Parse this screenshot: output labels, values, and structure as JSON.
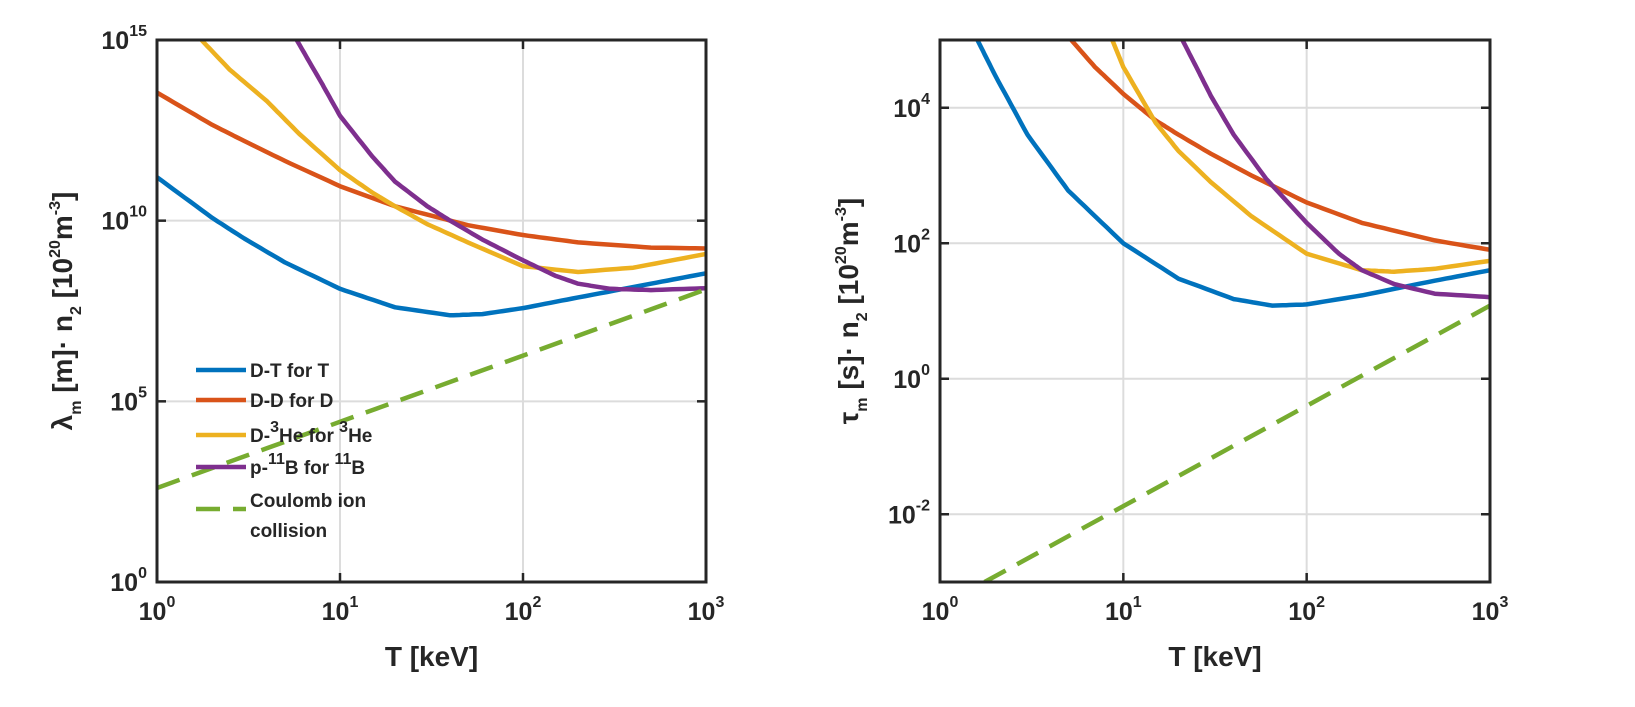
{
  "chart_data": [
    {
      "type": "line",
      "panel": "left",
      "xlabel": "T [keV]",
      "ylabel_parts": [
        "λ",
        "m",
        " [m]· n",
        "2",
        " [10",
        "20",
        "m",
        "-3",
        "]"
      ],
      "xscale": "log",
      "yscale": "log",
      "xlim": [
        1,
        1000
      ],
      "ylim": [
        1,
        1000000000000000.0
      ],
      "xticks": [
        {
          "base": "10",
          "exp": "0",
          "value": 1
        },
        {
          "base": "10",
          "exp": "1",
          "value": 10
        },
        {
          "base": "10",
          "exp": "2",
          "value": 100
        },
        {
          "base": "10",
          "exp": "3",
          "value": 1000
        }
      ],
      "yticks": [
        {
          "base": "10",
          "exp": "0",
          "value": 1
        },
        {
          "base": "10",
          "exp": "5",
          "value": 100000.0
        },
        {
          "base": "10",
          "exp": "10",
          "value": 10000000000.0
        },
        {
          "base": "10",
          "exp": "15",
          "value": 1000000000000000.0
        }
      ],
      "grid": true,
      "legend_position": "lower-left",
      "series": [
        {
          "name": "D-T for T",
          "color": "#0072BD",
          "dash": false,
          "x": [
            1,
            2,
            3,
            5,
            10,
            20,
            40,
            60,
            100,
            200,
            500,
            1000
          ],
          "y": [
            160000000000.0,
            12000000000.0,
            3200000000.0,
            700000000.0,
            130000000.0,
            40000000.0,
            24000000.0,
            26000000.0,
            38000000.0,
            75000000.0,
            180000000.0,
            350000000.0
          ]
        },
        {
          "name": "D-D for D",
          "color": "#D95319",
          "dash": false,
          "x": [
            1,
            2,
            3,
            5,
            10,
            20,
            50,
            100,
            200,
            500,
            1000
          ],
          "y": [
            35000000000000.0,
            4500000000000.0,
            1600000000000.0,
            450000000000.0,
            90000000000.0,
            25000000000.0,
            7500000000.0,
            4000000000.0,
            2500000000.0,
            1800000000.0,
            1700000000.0
          ]
        },
        {
          "name": "D-³He for ³He",
          "color": "#EDB120",
          "dash": false,
          "x": [
            1.75,
            2.5,
            4,
            6,
            10,
            15,
            20,
            30,
            50,
            100,
            200,
            400,
            1000
          ],
          "y": [
            1000000000000000.0,
            150000000000000.0,
            20000000000000.0,
            2500000000000.0,
            250000000000.0,
            60000000000.0,
            25000000000.0,
            8000000000.0,
            2500000000.0,
            550000000.0,
            380000000.0,
            500000000.0,
            1200000000.0
          ]
        },
        {
          "name": "p-¹¹B for ¹¹B",
          "color": "#7E2F8E",
          "dash": false,
          "x": [
            5.8,
            8,
            10,
            15,
            20,
            30,
            40,
            60,
            100,
            150,
            200,
            300,
            500,
            1000
          ],
          "y": [
            1000000000000000.0,
            60000000000000.0,
            8000000000000.0,
            600000000000.0,
            120000000000.0,
            25000000000.0,
            10000000000.0,
            3000000000.0,
            800000000.0,
            300000000.0,
            180000000.0,
            130000000.0,
            120000000.0,
            135000000.0
          ]
        },
        {
          "name": "Coulomb ion collision",
          "color": "#77AC30",
          "dash": true,
          "x": [
            1,
            1000
          ],
          "y": [
            400,
            125000000.0
          ]
        }
      ],
      "legend_entries": [
        {
          "parts": [
            "D-T for T"
          ]
        },
        {
          "parts": [
            "D-D for D"
          ]
        },
        {
          "parts": [
            "D-",
            "3",
            "He for ",
            "3",
            "He"
          ]
        },
        {
          "parts": [
            "p-",
            "11",
            "B for ",
            "11",
            "B"
          ]
        },
        {
          "parts": [
            "Coulomb ion"
          ],
          "line2": "collision"
        }
      ]
    },
    {
      "type": "line",
      "panel": "right",
      "xlabel": "T [keV]",
      "ylabel_parts": [
        "τ",
        "m",
        " [s]· n",
        "2",
        " [10",
        "20",
        "m",
        "-3",
        "]"
      ],
      "xscale": "log",
      "yscale": "log",
      "xlim": [
        1,
        1000
      ],
      "ylim": [
        0.001,
        100000
      ],
      "xticks": [
        {
          "base": "10",
          "exp": "0",
          "value": 1
        },
        {
          "base": "10",
          "exp": "1",
          "value": 10
        },
        {
          "base": "10",
          "exp": "2",
          "value": 100
        },
        {
          "base": "10",
          "exp": "3",
          "value": 1000
        }
      ],
      "yticks": [
        {
          "base": "10",
          "exp": "-2",
          "value": 0.01
        },
        {
          "base": "10",
          "exp": "0",
          "value": 1
        },
        {
          "base": "10",
          "exp": "2",
          "value": 100
        },
        {
          "base": "10",
          "exp": "4",
          "value": 10000
        }
      ],
      "grid": true,
      "series": [
        {
          "name": "D-T for T",
          "color": "#0072BD",
          "dash": false,
          "x": [
            1.6,
            2,
            3,
            5,
            10,
            20,
            40,
            65,
            100,
            200,
            500,
            1000
          ],
          "y": [
            100000,
            30000,
            4000,
            600,
            100,
            30,
            15,
            12,
            12.5,
            17,
            28,
            40
          ]
        },
        {
          "name": "D-D for D",
          "color": "#D95319",
          "dash": false,
          "x": [
            5.2,
            7,
            10,
            15,
            20,
            30,
            50,
            100,
            200,
            500,
            1000
          ],
          "y": [
            100000,
            40000,
            16000,
            6500,
            4000,
            2100,
            1000,
            400,
            200,
            110,
            80
          ]
        },
        {
          "name": "D-³He for ³He",
          "color": "#EDB120",
          "dash": false,
          "x": [
            8.7,
            10,
            15,
            20,
            30,
            50,
            100,
            200,
            300,
            500,
            1000
          ],
          "y": [
            100000,
            40000,
            6000,
            2300,
            800,
            250,
            70,
            40,
            38,
            42,
            55
          ]
        },
        {
          "name": "p-¹¹B for ¹¹B",
          "color": "#7E2F8E",
          "dash": false,
          "x": [
            21,
            25,
            30,
            40,
            60,
            100,
            150,
            200,
            300,
            500,
            1000
          ],
          "y": [
            100000,
            40000,
            15000,
            4000,
            900,
            200,
            70,
            40,
            25,
            18,
            16
          ]
        },
        {
          "name": "Coulomb ion collision",
          "color": "#77AC30",
          "dash": true,
          "x": [
            1.75,
            1000
          ],
          "y": [
            0.001,
            12
          ]
        }
      ]
    }
  ]
}
